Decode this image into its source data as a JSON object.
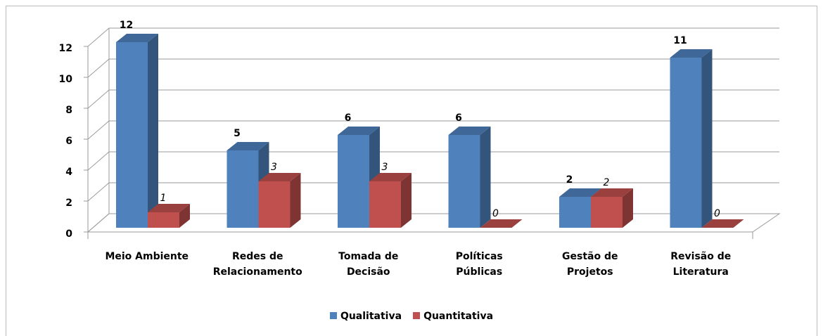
{
  "chart_data": {
    "type": "bar3d",
    "categories": [
      "Meio Ambiente",
      "Redes de\nRelacionamento",
      "Tomada de\nDecisão",
      "Políticas\nPúblicas",
      "Gestão de\nProjetos",
      "Revisão de\nLiteratura"
    ],
    "series": [
      {
        "name": "Qualitativa",
        "color": "#4f81bd",
        "values": [
          12,
          5,
          6,
          6,
          2,
          11
        ]
      },
      {
        "name": "Quantitativa",
        "color": "#c0504d",
        "values": [
          1,
          3,
          3,
          0,
          2,
          0
        ]
      }
    ],
    "ylim": [
      0,
      12
    ],
    "yticks": [
      0,
      2,
      4,
      6,
      8,
      10,
      12
    ],
    "grid": true,
    "legend": "bottom"
  }
}
